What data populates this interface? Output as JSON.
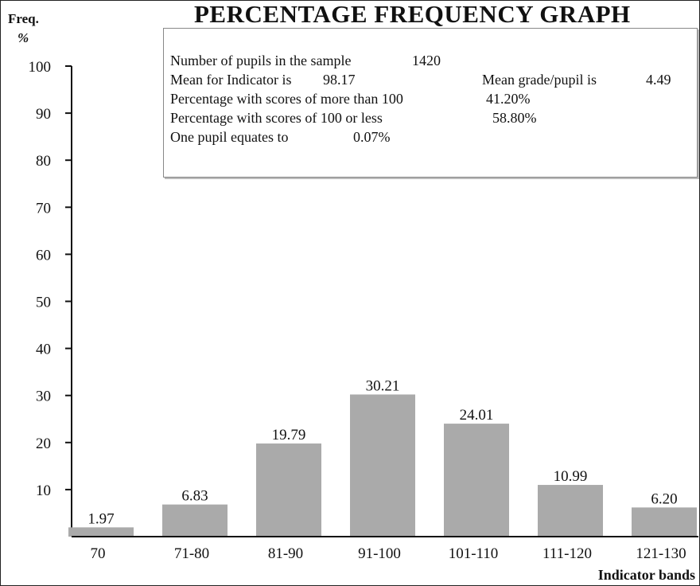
{
  "chart_data": {
    "type": "bar",
    "title": "PERCENTAGE FREQUENCY GRAPH",
    "ylabel_line1": "Freq.",
    "ylabel_line2": "%",
    "xlabel": "Indicator bands",
    "categories": [
      "70",
      "71-80",
      "81-90",
      "91-100",
      "101-110",
      "111-120",
      "121-130"
    ],
    "values": [
      1.97,
      6.83,
      19.79,
      30.21,
      24.01,
      10.99,
      6.2
    ],
    "value_labels": [
      "1.97",
      "6.83",
      "19.79",
      "30.21",
      "24.01",
      "10.99",
      "6.20"
    ],
    "yticks": [
      10,
      20,
      30,
      40,
      50,
      60,
      70,
      80,
      90,
      100
    ],
    "ylim": [
      0,
      100
    ],
    "grid": false,
    "bar_color": "#aaaaaa"
  },
  "info": {
    "sample_label": "Number of pupils in the sample",
    "sample_value": "1420",
    "mean_label": "Mean for Indicator is",
    "mean_value": "98.17",
    "grade_label": "Mean grade/pupil is",
    "grade_value": "4.49",
    "above_label": "Percentage with scores of more than 100",
    "above_value": "41.20%",
    "below_label": "Percentage with scores of 100 or less",
    "below_value": "58.80%",
    "pupil_label": "One pupil equates to",
    "pupil_value": "0.07%"
  }
}
